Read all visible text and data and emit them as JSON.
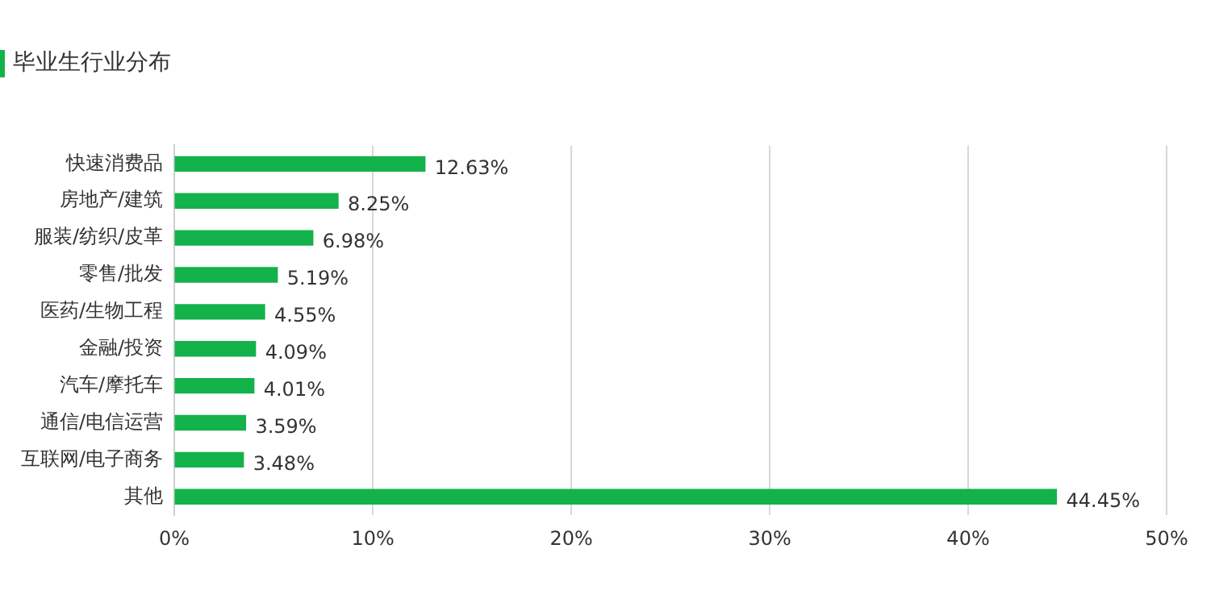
{
  "chart_data": {
    "type": "bar",
    "orientation": "horizontal",
    "title": "毕业生行业分布",
    "categories": [
      "快速消费品",
      "房地产/建筑",
      "服装/纺织/皮革",
      "零售/批发",
      "医药/生物工程",
      "金融/投资",
      "汽车/摩托车",
      "通信/电信运营",
      "互联网/电子商务",
      "其他"
    ],
    "values": [
      12.63,
      8.25,
      6.98,
      5.19,
      4.55,
      4.09,
      4.01,
      3.59,
      3.48,
      44.45
    ],
    "value_labels": [
      "12.63%",
      "8.25%",
      "6.98%",
      "5.19%",
      "4.55%",
      "4.09%",
      "4.01%",
      "3.59%",
      "3.48%",
      "44.45%"
    ],
    "color": "#14b24b",
    "xlim": [
      0,
      50
    ],
    "xticks": [
      {
        "value": 0,
        "label": "0%"
      },
      {
        "value": 10,
        "label": "10%"
      },
      {
        "value": 20,
        "label": "20%"
      },
      {
        "value": 30,
        "label": "30%"
      },
      {
        "value": 40,
        "label": "40%"
      },
      {
        "value": 50,
        "label": "50%"
      }
    ],
    "grid": "x"
  }
}
